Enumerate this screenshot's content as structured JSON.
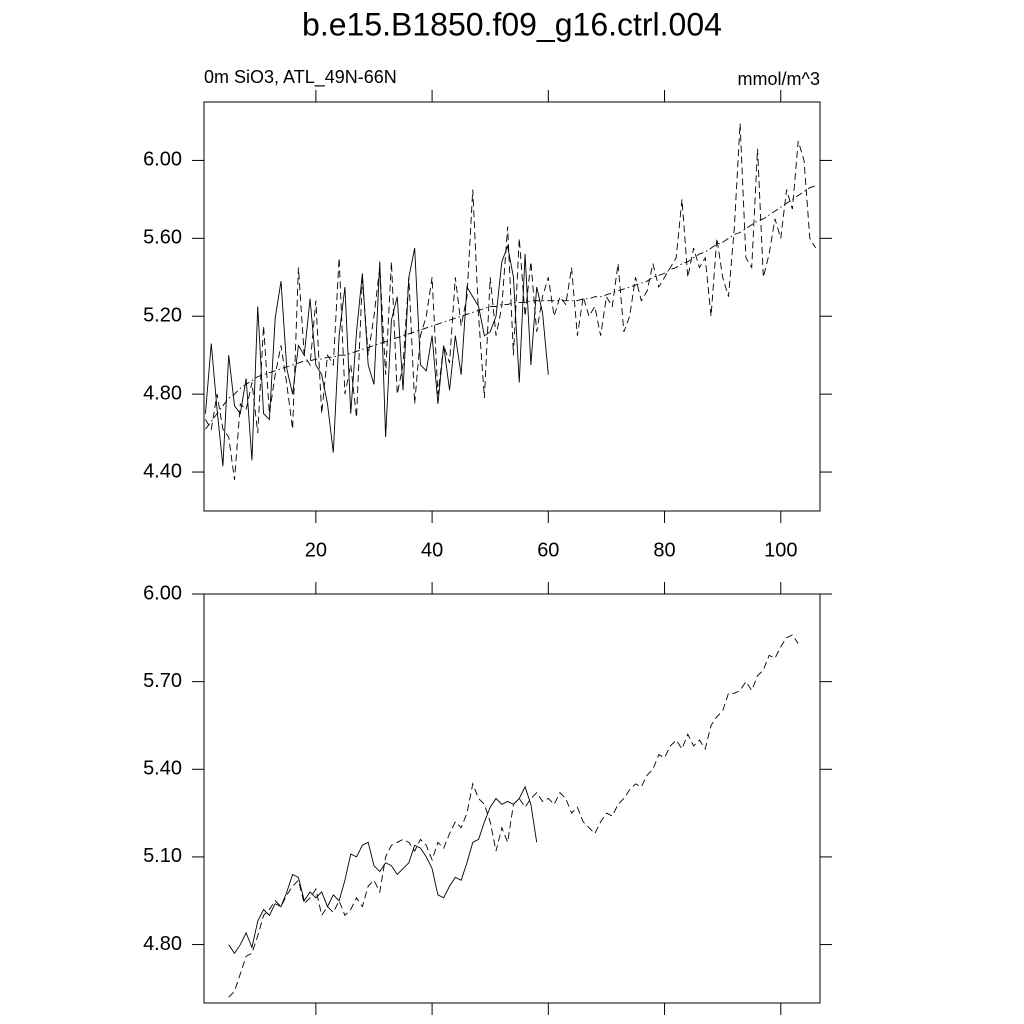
{
  "chart_data": [
    {
      "type": "line",
      "title": "b.e15.B1850.f09_g16.ctrl.004",
      "subtitle": "0m SiO3, ATL_49N-66N",
      "units": "mmol/m^3",
      "x": [
        1,
        2,
        3,
        4,
        5,
        6,
        7,
        8,
        9,
        10,
        11,
        12,
        13,
        14,
        15,
        16,
        17,
        18,
        19,
        20,
        21,
        22,
        23,
        24,
        25,
        26,
        27,
        28,
        29,
        30,
        31,
        32,
        33,
        34,
        35,
        36,
        37,
        38,
        39,
        40,
        41,
        42,
        43,
        44,
        45,
        46,
        47,
        48,
        49,
        50,
        51,
        52,
        53,
        54,
        55,
        56,
        57,
        58,
        59,
        60,
        61,
        62,
        63,
        64,
        65,
        66,
        67,
        68,
        69,
        70,
        71,
        72,
        73,
        74,
        75,
        76,
        77,
        78,
        79,
        80,
        81,
        82,
        83,
        84,
        85,
        86,
        87,
        88,
        89,
        90,
        91,
        92,
        93,
        94,
        95,
        96,
        97,
        98,
        99,
        100,
        101,
        102,
        103,
        104,
        105,
        106
      ],
      "series": [
        {
          "style": "solid",
          "color": "#000000",
          "values": [
            4.7,
            5.06,
            4.72,
            4.43,
            5.0,
            4.74,
            4.7,
            4.88,
            4.46,
            5.25,
            4.7,
            4.67,
            5.19,
            5.38,
            4.93,
            4.8,
            5.05,
            5.0,
            5.29,
            4.95,
            4.9,
            4.75,
            4.5,
            5.1,
            5.35,
            4.7,
            5.12,
            5.42,
            4.95,
            4.85,
            5.48,
            4.58,
            5.18,
            5.3,
            4.82,
            5.4,
            5.55,
            4.95,
            4.92,
            5.1,
            4.75,
            5.05,
            4.82,
            5.1,
            4.9,
            5.35,
            5.3,
            5.25,
            5.1,
            5.12,
            5.2,
            5.48,
            5.56,
            5.4,
            4.86,
            5.52,
            4.95,
            5.35,
            5.22,
            4.9,
            null,
            null,
            null,
            null,
            null,
            null,
            null,
            null,
            null,
            null,
            null,
            null,
            null,
            null,
            null,
            null,
            null,
            null,
            null,
            null,
            null,
            null,
            null,
            null,
            null,
            null,
            null,
            null,
            null,
            null,
            null,
            null,
            null,
            null,
            null,
            null,
            null,
            null,
            null,
            null,
            null,
            null,
            null,
            null,
            null,
            null
          ]
        },
        {
          "style": "dashed",
          "color": "#000000",
          "values": [
            4.67,
            4.62,
            4.8,
            4.62,
            4.58,
            4.36,
            4.75,
            4.72,
            4.86,
            4.6,
            5.15,
            4.7,
            4.9,
            5.05,
            4.85,
            4.62,
            5.45,
            5.0,
            4.95,
            5.28,
            4.7,
            5.0,
            4.95,
            5.5,
            4.8,
            4.95,
            4.68,
            5.4,
            5.0,
            5.2,
            5.45,
            4.9,
            5.48,
            4.8,
            4.95,
            5.4,
            4.75,
            5.1,
            5.2,
            5.4,
            4.8,
            5.05,
            4.96,
            5.4,
            5.15,
            5.3,
            5.85,
            5.2,
            4.78,
            5.4,
            5.1,
            5.25,
            5.66,
            5.0,
            5.6,
            5.2,
            5.48,
            5.12,
            5.3,
            5.4,
            5.2,
            5.3,
            5.26,
            5.45,
            5.1,
            5.3,
            5.2,
            5.25,
            5.1,
            5.3,
            5.25,
            5.47,
            5.12,
            5.2,
            5.4,
            5.28,
            5.33,
            5.47,
            5.35,
            5.4,
            5.45,
            5.5,
            5.8,
            5.4,
            5.55,
            5.45,
            5.5,
            5.2,
            5.6,
            5.4,
            5.3,
            5.65,
            6.19,
            5.5,
            5.45,
            6.06,
            5.4,
            5.52,
            5.7,
            5.6,
            5.85,
            5.75,
            6.1,
            6.0,
            5.6,
            5.55
          ]
        },
        {
          "style": "dashdot",
          "color": "#000000",
          "values": [
            4.62,
            4.66,
            4.7,
            4.74,
            4.78,
            4.8,
            4.83,
            4.85,
            4.87,
            4.89,
            4.9,
            4.91,
            4.92,
            4.93,
            4.94,
            4.95,
            4.96,
            4.97,
            4.97,
            4.98,
            4.98,
            4.99,
            4.99,
            5.0,
            5.0,
            5.01,
            5.02,
            5.03,
            5.04,
            5.05,
            5.06,
            5.07,
            5.08,
            5.09,
            5.1,
            5.11,
            5.12,
            5.13,
            5.14,
            5.15,
            5.16,
            5.17,
            5.18,
            5.19,
            5.2,
            5.21,
            5.22,
            5.23,
            5.24,
            5.25,
            5.25,
            5.26,
            5.26,
            5.27,
            5.27,
            5.27,
            5.28,
            5.28,
            5.28,
            5.28,
            5.28,
            5.28,
            5.28,
            5.28,
            5.28,
            5.29,
            5.29,
            5.3,
            5.3,
            5.31,
            5.32,
            5.33,
            5.34,
            5.35,
            5.36,
            5.37,
            5.38,
            5.4,
            5.41,
            5.42,
            5.44,
            5.45,
            5.47,
            5.48,
            5.5,
            5.52,
            5.53,
            5.55,
            5.57,
            5.58,
            5.6,
            5.62,
            5.63,
            5.65,
            5.67,
            5.69,
            5.7,
            5.72,
            5.74,
            5.76,
            5.78,
            5.8,
            5.82,
            5.84,
            5.86,
            5.87
          ]
        }
      ],
      "xlim": [
        0.75,
        106.75
      ],
      "xticks": [
        20,
        40,
        60,
        80,
        100
      ],
      "ylim": [
        4.2,
        6.3
      ],
      "yticks": [
        {
          "value": 4.4,
          "label": "4.40"
        },
        {
          "value": 4.8,
          "label": "4.80"
        },
        {
          "value": 5.2,
          "label": "5.20"
        },
        {
          "value": 5.6,
          "label": "5.60"
        },
        {
          "value": 6.0,
          "label": "6.00"
        }
      ],
      "show_xtick_labels": true
    },
    {
      "type": "line",
      "x": [
        5,
        6,
        7,
        8,
        9,
        10,
        11,
        12,
        13,
        14,
        15,
        16,
        17,
        18,
        19,
        20,
        21,
        22,
        23,
        24,
        25,
        26,
        27,
        28,
        29,
        30,
        31,
        32,
        33,
        34,
        35,
        36,
        37,
        38,
        39,
        40,
        41,
        42,
        43,
        44,
        45,
        46,
        47,
        48,
        49,
        50,
        51,
        52,
        53,
        54,
        55,
        56,
        57,
        58,
        59,
        60,
        61,
        62,
        63,
        64,
        65,
        66,
        67,
        68,
        69,
        70,
        71,
        72,
        73,
        74,
        75,
        76,
        77,
        78,
        79,
        80,
        81,
        82,
        83,
        84,
        85,
        86,
        87,
        88,
        89,
        90,
        91,
        92,
        93,
        94,
        95,
        96,
        97,
        98,
        99,
        100,
        101,
        102,
        103
      ],
      "series": [
        {
          "style": "solid",
          "color": "#000000",
          "values": [
            4.8,
            4.77,
            4.8,
            4.84,
            4.79,
            4.88,
            4.92,
            4.9,
            4.94,
            4.93,
            4.98,
            5.04,
            5.03,
            4.95,
            4.98,
            4.96,
            4.98,
            4.93,
            4.97,
            4.95,
            5.02,
            5.11,
            5.1,
            5.14,
            5.15,
            5.07,
            5.05,
            5.08,
            5.07,
            5.04,
            5.06,
            5.08,
            5.14,
            5.13,
            5.1,
            5.06,
            4.97,
            4.96,
            5.0,
            5.03,
            5.02,
            5.08,
            5.15,
            5.16,
            5.22,
            5.27,
            5.3,
            5.28,
            5.29,
            5.28,
            5.3,
            5.34,
            5.28,
            5.15,
            null,
            null,
            null,
            null,
            null,
            null,
            null,
            null,
            null,
            null,
            null,
            null,
            null,
            null,
            null,
            null,
            null,
            null,
            null,
            null,
            null,
            null,
            null,
            null,
            null,
            null,
            null,
            null,
            null,
            null,
            null,
            null,
            null,
            null,
            null,
            null,
            null,
            null,
            null,
            null,
            null,
            null,
            null,
            null,
            null
          ]
        },
        {
          "style": "dashed",
          "color": "#000000",
          "values": [
            4.62,
            4.64,
            4.7,
            4.76,
            4.77,
            4.83,
            4.9,
            4.92,
            4.95,
            4.93,
            4.97,
            5.0,
            5.02,
            4.94,
            4.96,
            4.99,
            4.9,
            4.93,
            4.91,
            4.95,
            4.9,
            4.92,
            4.96,
            4.93,
            5.0,
            5.02,
            4.98,
            5.1,
            5.14,
            5.15,
            5.16,
            5.15,
            5.12,
            5.16,
            5.14,
            5.09,
            5.15,
            5.13,
            5.18,
            5.22,
            5.2,
            5.25,
            5.35,
            5.3,
            5.28,
            5.22,
            5.12,
            5.2,
            5.15,
            5.28,
            5.3,
            5.27,
            5.3,
            5.32,
            5.29,
            5.3,
            5.28,
            5.32,
            5.3,
            5.25,
            5.27,
            5.22,
            5.2,
            5.18,
            5.22,
            5.25,
            5.24,
            5.28,
            5.3,
            5.33,
            5.35,
            5.34,
            5.38,
            5.4,
            5.45,
            5.44,
            5.48,
            5.5,
            5.47,
            5.52,
            5.48,
            5.5,
            5.47,
            5.55,
            5.58,
            5.6,
            5.66,
            5.66,
            5.67,
            5.7,
            5.67,
            5.72,
            5.74,
            5.79,
            5.78,
            5.82,
            5.85,
            5.86,
            5.83
          ]
        }
      ],
      "xlim": [
        0.75,
        106.75
      ],
      "xticks": [
        20,
        40,
        60,
        80,
        100
      ],
      "ylim": [
        4.6,
        6.0
      ],
      "yticks": [
        {
          "value": 4.8,
          "label": "4.80"
        },
        {
          "value": 5.1,
          "label": "5.10"
        },
        {
          "value": 5.4,
          "label": "5.40"
        },
        {
          "value": 5.7,
          "label": "5.70"
        },
        {
          "value": 6.0,
          "label": "6.00"
        }
      ],
      "show_xtick_labels": false
    }
  ]
}
